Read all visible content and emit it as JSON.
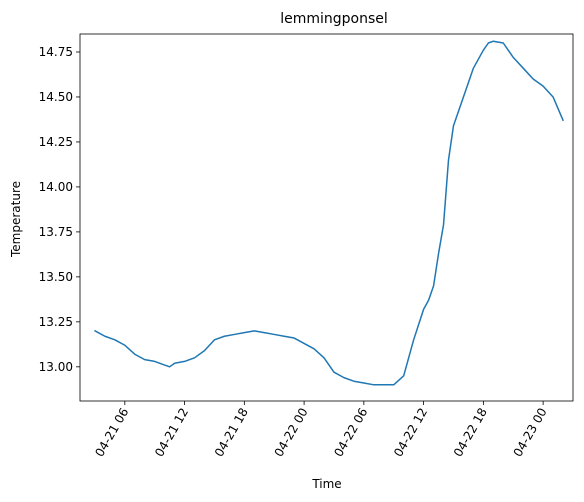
{
  "chart_data": {
    "type": "line",
    "title": "lemmingponsel",
    "xlabel": "Time",
    "ylabel": "Temperature",
    "x_tick_labels": [
      "04-21 06",
      "04-21 12",
      "04-21 18",
      "04-22 00",
      "04-22 06",
      "04-22 12",
      "04-22 18",
      "04-23 00"
    ],
    "x_tick_times": [
      "04-21 06:00",
      "04-21 12:00",
      "04-21 18:00",
      "04-22 00:00",
      "04-22 06:00",
      "04-22 12:00",
      "04-22 18:00",
      "04-23 00:00"
    ],
    "xlim": [
      "04-21 01:30",
      "04-23 03:00"
    ],
    "y_ticks": [
      13.0,
      13.25,
      13.5,
      13.75,
      14.0,
      14.25,
      14.5,
      14.75
    ],
    "y_tick_labels": [
      "13.00",
      "13.25",
      "13.50",
      "13.75",
      "14.00",
      "14.25",
      "14.50",
      "14.75"
    ],
    "ylim": [
      12.81,
      14.85
    ],
    "grid": false,
    "line_color": "#1f77b4",
    "series": [
      {
        "x": [
          "04-21 03:00",
          "04-21 04:00",
          "04-21 05:00",
          "04-21 06:00",
          "04-21 07:00",
          "04-21 08:00",
          "04-21 09:00",
          "04-21 10:00",
          "04-21 10:30",
          "04-21 11:00",
          "04-21 12:00",
          "04-21 13:00",
          "04-21 14:00",
          "04-21 15:00",
          "04-21 16:00",
          "04-21 17:00",
          "04-21 18:00",
          "04-21 19:00",
          "04-21 20:00",
          "04-21 21:00",
          "04-21 22:00",
          "04-21 23:00",
          "04-22 00:00",
          "04-22 01:00",
          "04-22 02:00",
          "04-22 03:00",
          "04-22 04:00",
          "04-22 05:00",
          "04-22 06:00",
          "04-22 07:00",
          "04-22 08:00",
          "04-22 09:00",
          "04-22 10:00",
          "04-22 11:00",
          "04-22 12:00",
          "04-22 12:30",
          "04-22 13:00",
          "04-22 13:30",
          "04-22 14:00",
          "04-22 14:30",
          "04-22 15:00",
          "04-22 16:00",
          "04-22 17:00",
          "04-22 18:00",
          "04-22 18:30",
          "04-22 19:00",
          "04-22 20:00",
          "04-22 21:00",
          "04-22 22:00",
          "04-22 23:00",
          "04-23 00:00",
          "04-23 01:00",
          "04-23 02:00"
        ],
        "y": [
          13.2,
          13.17,
          13.15,
          13.12,
          13.07,
          13.04,
          13.03,
          13.01,
          13.0,
          13.02,
          13.03,
          13.05,
          13.09,
          13.15,
          13.17,
          13.18,
          13.19,
          13.2,
          13.19,
          13.18,
          13.17,
          13.16,
          13.13,
          13.1,
          13.05,
          12.97,
          12.94,
          12.92,
          12.91,
          12.9,
          12.9,
          12.9,
          12.95,
          13.15,
          13.32,
          13.37,
          13.45,
          13.63,
          13.79,
          14.15,
          14.34,
          14.5,
          14.66,
          14.76,
          14.8,
          14.81,
          14.8,
          14.72,
          14.66,
          14.6,
          14.56,
          14.5,
          14.37
        ]
      }
    ]
  }
}
